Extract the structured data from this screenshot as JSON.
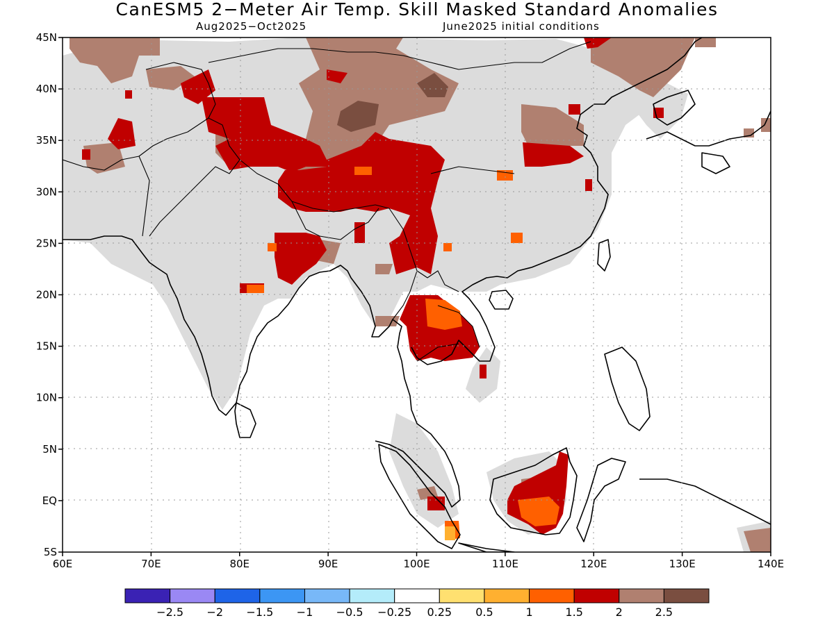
{
  "title": "CanESM5 2−Meter Air Temp. Skill Masked Standard Anomalies",
  "subtitle_period": "Aug2025−Oct2025",
  "subtitle_init": "June2025 initial conditions",
  "colors": {
    "mask_gray": "#dcdcdc",
    "cat_1_5_2": "#c00000",
    "cat_1_1_5": "#ff6000",
    "cat_0_5_1": "#ffb030",
    "cat_2_2_5": "#b08070",
    "cat_2_5_plus": "#7a4e40",
    "coast": "#000000"
  },
  "lat_axis": {
    "ticks": [
      {
        "value": 45,
        "label": "45N"
      },
      {
        "value": 40,
        "label": "40N"
      },
      {
        "value": 35,
        "label": "35N"
      },
      {
        "value": 30,
        "label": "30N"
      },
      {
        "value": 25,
        "label": "25N"
      },
      {
        "value": 20,
        "label": "20N"
      },
      {
        "value": 15,
        "label": "15N"
      },
      {
        "value": 10,
        "label": "10N"
      },
      {
        "value": 5,
        "label": "5N"
      },
      {
        "value": 0,
        "label": "EQ"
      },
      {
        "value": -5,
        "label": "5S"
      }
    ]
  },
  "lon_axis": {
    "ticks": [
      {
        "value": 60,
        "label": "60E"
      },
      {
        "value": 70,
        "label": "70E"
      },
      {
        "value": 80,
        "label": "80E"
      },
      {
        "value": 90,
        "label": "90E"
      },
      {
        "value": 100,
        "label": "100E"
      },
      {
        "value": 110,
        "label": "110E"
      },
      {
        "value": 120,
        "label": "120E"
      },
      {
        "value": 130,
        "label": "130E"
      },
      {
        "value": 140,
        "label": "140E"
      }
    ]
  },
  "colorbar": {
    "colors": [
      "#3a22b4",
      "#9a88f4",
      "#1e64e8",
      "#3c96f4",
      "#78b8f8",
      "#b4ecfa",
      "#ffffff",
      "#ffe070",
      "#ffb030",
      "#ff6000",
      "#c00000",
      "#b08070",
      "#7a4e40"
    ],
    "labels": [
      "−2.5",
      "−2",
      "−1.5",
      "−1",
      "−0.5",
      "−0.25",
      "0.25",
      "0.5",
      "1",
      "1.5",
      "2",
      "2.5"
    ]
  }
}
